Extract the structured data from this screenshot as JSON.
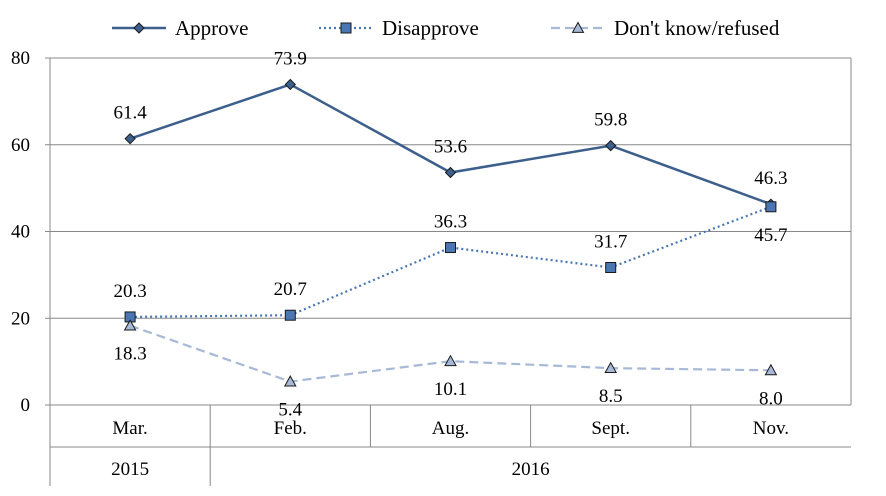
{
  "chart_data": {
    "type": "line",
    "categories": [
      "Mar.",
      "Feb.",
      "Aug.",
      "Sept.",
      "Nov."
    ],
    "year_groups": [
      {
        "label": "2015",
        "span": 1
      },
      {
        "label": "2016",
        "span": 4
      }
    ],
    "ylim": [
      0,
      80
    ],
    "yticks": [
      0,
      20,
      40,
      60,
      80
    ],
    "grid": true,
    "legend_position": "top",
    "series": [
      {
        "name": "Approve",
        "values": [
          61.4,
          73.9,
          53.6,
          59.8,
          46.3
        ],
        "labels": [
          "61.4",
          "73.9",
          "53.6",
          "59.8",
          "46.3"
        ],
        "label_position": "above",
        "marker": "diamond",
        "line_style": "solid",
        "color": "#3d5f8c"
      },
      {
        "name": "Disapprove",
        "values": [
          20.3,
          20.7,
          36.3,
          31.7,
          45.7
        ],
        "labels": [
          "20.3",
          "20.7",
          "36.3",
          "31.7",
          "45.7"
        ],
        "label_position": [
          "above",
          "above",
          "above",
          "above",
          "below"
        ],
        "marker": "square",
        "line_style": "dotted",
        "color": "#4a77b4"
      },
      {
        "name": "Don't know/refused",
        "values": [
          18.3,
          5.4,
          10.1,
          8.5,
          8.0
        ],
        "labels": [
          "18.3",
          "5.4",
          "10.1",
          "8.5",
          "8.0"
        ],
        "label_position": "below",
        "marker": "triangle",
        "line_style": "dashed",
        "color": "#a7b9d6"
      }
    ]
  }
}
